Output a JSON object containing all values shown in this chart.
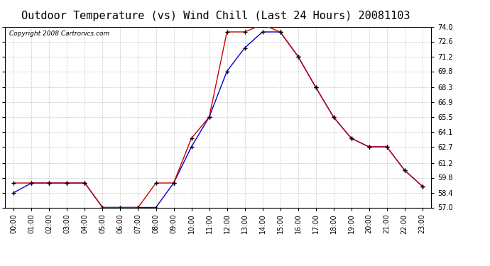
{
  "title": "Outdoor Temperature (vs) Wind Chill (Last 24 Hours) 20081103",
  "copyright": "Copyright 2008 Cartronics.com",
  "hours": [
    "00:00",
    "01:00",
    "02:00",
    "03:00",
    "04:00",
    "05:00",
    "06:00",
    "07:00",
    "08:00",
    "09:00",
    "10:00",
    "11:00",
    "12:00",
    "13:00",
    "14:00",
    "15:00",
    "16:00",
    "17:00",
    "18:00",
    "19:00",
    "20:00",
    "21:00",
    "22:00",
    "23:00"
  ],
  "temp": [
    59.3,
    59.3,
    59.3,
    59.3,
    59.3,
    57.0,
    57.0,
    57.0,
    59.3,
    59.3,
    63.5,
    65.5,
    73.5,
    73.5,
    74.2,
    73.5,
    71.2,
    68.3,
    65.5,
    63.5,
    62.7,
    62.7,
    60.5,
    59.0
  ],
  "windchill": [
    58.4,
    59.3,
    59.3,
    59.3,
    59.3,
    57.0,
    57.0,
    57.0,
    57.0,
    59.3,
    62.7,
    65.5,
    69.8,
    72.0,
    73.5,
    73.5,
    71.2,
    68.3,
    65.5,
    63.5,
    62.7,
    62.7,
    60.5,
    59.0
  ],
  "temp_color": "#cc0000",
  "windchill_color": "#0000cc",
  "ylim_min": 57.0,
  "ylim_max": 74.0,
  "yticks": [
    57.0,
    58.4,
    59.8,
    61.2,
    62.7,
    64.1,
    65.5,
    66.9,
    68.3,
    69.8,
    71.2,
    72.6,
    74.0
  ],
  "background_color": "#ffffff",
  "plot_bg_color": "#ffffff",
  "grid_color": "#bbbbbb",
  "title_fontsize": 11,
  "copyright_fontsize": 6.5,
  "tick_fontsize": 7
}
